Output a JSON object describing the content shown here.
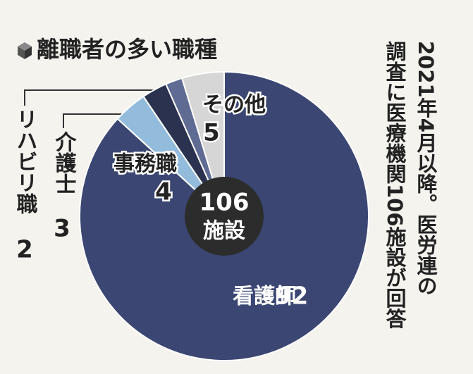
{
  "chart_data": {
    "type": "pie",
    "title": "離職者の多い職種",
    "categories": [
      "看護師",
      "事務職",
      "介護士",
      "リハビリ職",
      "その他"
    ],
    "values": [
      92,
      4,
      3,
      2,
      5
    ],
    "colors": [
      "#3b4772",
      "#93bcdc",
      "#2a3250",
      "#5f6b92",
      "#d6d6d6"
    ],
    "center_label": "106",
    "center_sublabel": "施設",
    "note": [
      "2021年4月以降。医労連の",
      "調査に医療機関106施設が回答"
    ]
  }
}
